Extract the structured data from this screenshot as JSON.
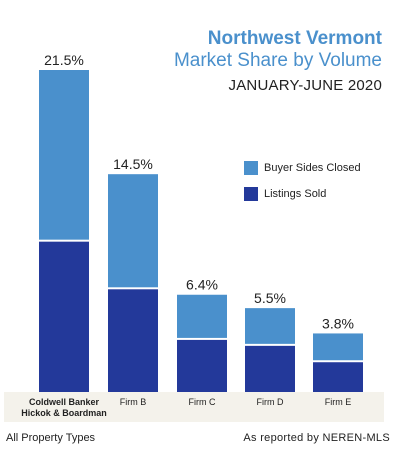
{
  "title": "Northwest Vermont",
  "subtitle": "Market Share by Volume",
  "period": "JANUARY-JUNE 2020",
  "legend": [
    {
      "label": "Buyer Sides Closed",
      "color": "#4a90cc"
    },
    {
      "label": "Listings Sold",
      "color": "#23399a"
    }
  ],
  "footer": {
    "left": "All Property Types",
    "right": "As reported by NEREN-MLS"
  },
  "chart_data": {
    "type": "bar",
    "stacked": true,
    "categories": [
      [
        "Coldwell Banker",
        "Hickok & Boardman"
      ],
      [
        "Firm B"
      ],
      [
        "Firm C"
      ],
      [
        "Firm D"
      ],
      [
        "Firm E"
      ]
    ],
    "totals": [
      21.5,
      14.5,
      6.4,
      5.5,
      3.8
    ],
    "total_labels": [
      "21.5%",
      "14.5%",
      "6.4%",
      "5.5%",
      "3.8%"
    ],
    "series": [
      {
        "name": "Listings Sold",
        "values": [
          10.1,
          6.9,
          3.5,
          3.1,
          2.0
        ],
        "color": "#23399a"
      },
      {
        "name": "Buyer Sides Closed",
        "values": [
          11.4,
          7.6,
          2.9,
          2.4,
          1.8
        ],
        "color": "#4a90cc"
      }
    ],
    "ylim": [
      0,
      21.5
    ],
    "legend_position": "right",
    "grid": false
  }
}
